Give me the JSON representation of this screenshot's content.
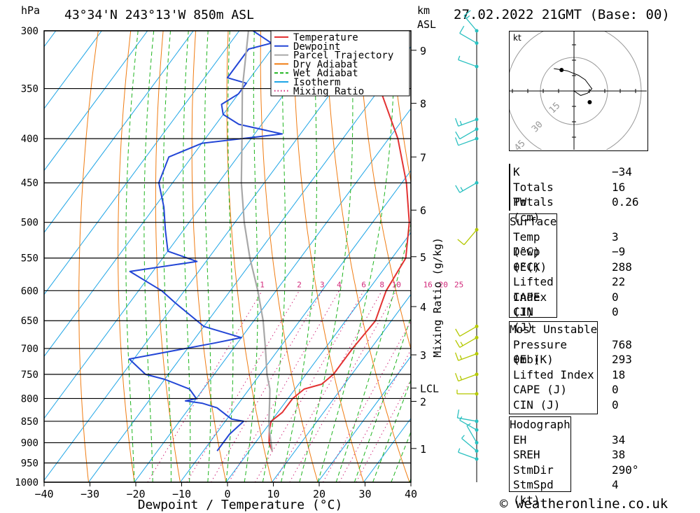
{
  "header": {
    "hpa_unit": "hPa",
    "location": "43°34'N  243°13'W  850m  ASL",
    "km_unit": "km",
    "asl_unit": "ASL",
    "datetime": "27.02.2022  21GMT  (Base: 00)"
  },
  "chart_data": {
    "type": "line",
    "xlabel": "Dewpoint / Temperature (°C)",
    "ylabel_left": "hPa",
    "ylabel_right": "Mixing Ratio (g/kg)",
    "x_ticks": [
      -40,
      -30,
      -20,
      -10,
      0,
      10,
      20,
      30,
      40
    ],
    "xlim": [
      -40,
      40
    ],
    "pressure_levels": [
      300,
      350,
      400,
      450,
      500,
      550,
      600,
      650,
      700,
      750,
      800,
      850,
      900,
      950,
      1000
    ],
    "ylim_hpa": [
      1000,
      300
    ],
    "km_ticks": [
      {
        "label": "9",
        "hpa": 316
      },
      {
        "label": "8",
        "hpa": 364
      },
      {
        "label": "7",
        "hpa": 420
      },
      {
        "label": "6",
        "hpa": 484
      },
      {
        "label": "5",
        "hpa": 548
      },
      {
        "label": "4",
        "hpa": 626
      },
      {
        "label": "3",
        "hpa": 712
      },
      {
        "label": "LCL",
        "hpa": 778
      },
      {
        "label": "2",
        "hpa": 806
      },
      {
        "label": "1",
        "hpa": 914
      }
    ],
    "mixing_ratio_labels": [
      "1",
      "2",
      "3",
      "4",
      "6",
      "8",
      "10",
      "16",
      "20",
      "25"
    ],
    "mixing_ratio_values": [
      1,
      2,
      3,
      4,
      6,
      8,
      10,
      16,
      20,
      25
    ],
    "legend": [
      {
        "name": "Temperature",
        "color": "#e33232",
        "style": "solid"
      },
      {
        "name": "Dewpoint",
        "color": "#2346d6",
        "style": "solid"
      },
      {
        "name": "Parcel Trajectory",
        "color": "#a8a8a8",
        "style": "solid"
      },
      {
        "name": "Dry Adiabat",
        "color": "#f07c12",
        "style": "solid"
      },
      {
        "name": "Wet Adiabat",
        "color": "#1eb41e",
        "style": "dashed"
      },
      {
        "name": "Isotherm",
        "color": "#1ea5e6",
        "style": "solid"
      },
      {
        "name": "Mixing Ratio",
        "color": "#d2287a",
        "style": "dotted"
      }
    ],
    "series": [
      {
        "name": "Temperature",
        "points": [
          [
            920,
            5
          ],
          [
            900,
            3
          ],
          [
            870,
            1
          ],
          [
            850,
            0
          ],
          [
            830,
            1
          ],
          [
            800,
            1
          ],
          [
            780,
            2
          ],
          [
            770,
            5
          ],
          [
            750,
            6
          ],
          [
            700,
            6
          ],
          [
            650,
            6.5
          ],
          [
            620,
            5
          ],
          [
            600,
            4
          ],
          [
            550,
            3
          ],
          [
            500,
            -2
          ],
          [
            450,
            -9
          ],
          [
            400,
            -18
          ],
          [
            350,
            -30
          ],
          [
            320,
            -38
          ],
          [
            300,
            -43
          ]
        ]
      },
      {
        "name": "Dewpoint",
        "points": [
          [
            920,
            -7
          ],
          [
            880,
            -7
          ],
          [
            850,
            -6
          ],
          [
            845,
            -9
          ],
          [
            820,
            -14
          ],
          [
            810,
            -18
          ],
          [
            805,
            -22
          ],
          [
            800,
            -20
          ],
          [
            780,
            -23
          ],
          [
            760,
            -30
          ],
          [
            750,
            -35
          ],
          [
            720,
            -41
          ],
          [
            690,
            -25
          ],
          [
            680,
            -20
          ],
          [
            660,
            -30
          ],
          [
            620,
            -40
          ],
          [
            600,
            -45
          ],
          [
            570,
            -55
          ],
          [
            555,
            -42
          ],
          [
            540,
            -50
          ],
          [
            510,
            -54
          ],
          [
            480,
            -58
          ],
          [
            450,
            -63
          ],
          [
            420,
            -65
          ],
          [
            405,
            -60
          ],
          [
            395,
            -44
          ],
          [
            385,
            -55
          ],
          [
            375,
            -60
          ],
          [
            365,
            -62
          ],
          [
            355,
            -60
          ],
          [
            345,
            -60
          ],
          [
            340,
            -65
          ],
          [
            315,
            -65
          ],
          [
            310,
            -61
          ],
          [
            300,
            -67
          ]
        ]
      },
      {
        "name": "Parcel Trajectory",
        "points": [
          [
            920,
            5
          ],
          [
            870,
            1
          ],
          [
            850,
            -0.5
          ],
          [
            800,
            -4
          ],
          [
            780,
            -5.5
          ],
          [
            750,
            -8.5
          ],
          [
            700,
            -13
          ],
          [
            650,
            -18
          ],
          [
            600,
            -24
          ],
          [
            550,
            -31
          ],
          [
            500,
            -38
          ],
          [
            450,
            -45
          ],
          [
            400,
            -52
          ],
          [
            350,
            -60
          ],
          [
            300,
            -68
          ]
        ]
      }
    ],
    "wind_profile": [
      {
        "hpa": 940,
        "dir": 290,
        "kt": 4
      },
      {
        "hpa": 920,
        "dir": 310,
        "kt": 5
      },
      {
        "hpa": 900,
        "dir": 330,
        "kt": 5
      },
      {
        "hpa": 870,
        "dir": 300,
        "kt": 5
      },
      {
        "hpa": 850,
        "dir": 280,
        "kt": 10
      },
      {
        "hpa": 790,
        "dir": 270,
        "kt": 5
      },
      {
        "hpa": 750,
        "dir": 250,
        "kt": 15
      },
      {
        "hpa": 710,
        "dir": 250,
        "kt": 15
      },
      {
        "hpa": 680,
        "dir": 240,
        "kt": 15
      },
      {
        "hpa": 660,
        "dir": 240,
        "kt": 10
      },
      {
        "hpa": 510,
        "dir": 220,
        "kt": 10
      },
      {
        "hpa": 450,
        "dir": 240,
        "kt": 15
      },
      {
        "hpa": 400,
        "dir": 250,
        "kt": 10
      },
      {
        "hpa": 390,
        "dir": 240,
        "kt": 10
      },
      {
        "hpa": 380,
        "dir": 250,
        "kt": 15
      },
      {
        "hpa": 330,
        "dir": 290,
        "kt": 5
      },
      {
        "hpa": 310,
        "dir": 300,
        "kt": 10
      },
      {
        "hpa": 300,
        "dir": 320,
        "kt": 15
      }
    ],
    "hodograph": {
      "unit": "kt",
      "ring_labels": [
        "15",
        "30",
        "45"
      ],
      "trace_kt": [
        [
          3,
          -2
        ],
        [
          6,
          -1
        ],
        [
          8,
          1
        ],
        [
          5,
          5
        ],
        [
          2,
          7
        ],
        [
          -3,
          9
        ],
        [
          -9,
          10
        ]
      ]
    }
  },
  "indices": {
    "general": [
      {
        "label": "K",
        "value": "-34"
      },
      {
        "label": "Totals Totals",
        "value": "16"
      },
      {
        "label": "PW (cm)",
        "value": "0.26"
      }
    ],
    "surface": {
      "title": "Surface",
      "rows": [
        {
          "label": "Temp (°C)",
          "value": "3"
        },
        {
          "label": "Dewp (°C)",
          "value": "-9"
        },
        {
          "label": "θE(K)",
          "value": "288"
        },
        {
          "label": "Lifted Index",
          "value": "22"
        },
        {
          "label": "CAPE (J)",
          "value": "0"
        },
        {
          "label": "CIN (J)",
          "value": "0"
        }
      ]
    },
    "most_unstable": {
      "title": "Most Unstable",
      "rows": [
        {
          "label": "Pressure (mb)",
          "value": "768"
        },
        {
          "label": "θE (K)",
          "value": "293"
        },
        {
          "label": "Lifted Index",
          "value": "18"
        },
        {
          "label": "CAPE (J)",
          "value": "0"
        },
        {
          "label": "CIN (J)",
          "value": "0"
        }
      ]
    },
    "hodograph": {
      "title": "Hodograph",
      "rows": [
        {
          "label": "EH",
          "value": "34"
        },
        {
          "label": "SREH",
          "value": "38"
        },
        {
          "label": "StmDir",
          "value": "290°"
        },
        {
          "label": "StmSpd (kt)",
          "value": "4"
        }
      ]
    }
  },
  "footer": {
    "credit": "© weatheronline.co.uk"
  },
  "colors": {
    "temperature": "#e33232",
    "dewpoint": "#2346d6",
    "parcel": "#a8a8a8",
    "dry_adiabat": "#f07c12",
    "wet_adiabat": "#1eb41e",
    "isotherm": "#1ea5e6",
    "mixing_ratio": "#d2287a",
    "wind_low": "#2ac0c0",
    "wind_high": "#b4c800"
  }
}
